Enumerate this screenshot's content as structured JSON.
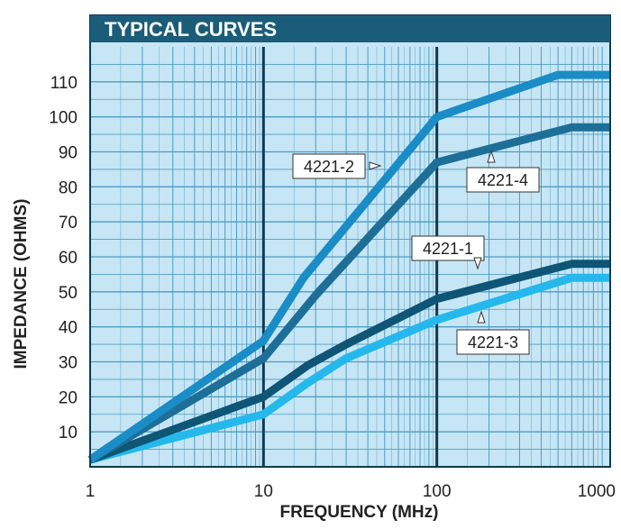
{
  "chart_data": {
    "type": "line",
    "title": "TYPICAL CURVES",
    "xlabel": "FREQUENCY (MHz)",
    "ylabel": "IMPEDANCE (OHMS)",
    "x_scale": "log",
    "xlim": [
      1,
      1000
    ],
    "ylim": [
      0,
      120
    ],
    "x_ticks": [
      1,
      10,
      100,
      1000
    ],
    "x_tick_labels": [
      "1",
      "10",
      "100",
      "1000"
    ],
    "y_ticks": [
      10,
      20,
      30,
      40,
      50,
      60,
      70,
      80,
      90,
      100,
      110
    ],
    "y_tick_labels": [
      "10",
      "20",
      "30",
      "40",
      "50",
      "60",
      "70",
      "80",
      "90",
      "100",
      "110"
    ],
    "grid": true,
    "series": [
      {
        "name": "4221-2",
        "color": "#1a8cc6",
        "x": [
          1,
          10,
          17,
          100,
          500,
          1000
        ],
        "y": [
          2,
          36,
          54,
          100,
          112,
          112
        ]
      },
      {
        "name": "4221-4",
        "color": "#1d6f98",
        "x": [
          1,
          10,
          20,
          100,
          600,
          1000
        ],
        "y": [
          2,
          31,
          49,
          87,
          97,
          97
        ]
      },
      {
        "name": "4221-1",
        "color": "#0e5576",
        "x": [
          1,
          10,
          18,
          30,
          100,
          600,
          1000
        ],
        "y": [
          2,
          20,
          29,
          35,
          48,
          58,
          58
        ]
      },
      {
        "name": "4221-3",
        "color": "#25b8ec",
        "x": [
          1,
          10,
          18,
          30,
          100,
          600,
          1000
        ],
        "y": [
          2,
          15,
          24,
          31,
          42,
          54,
          54
        ]
      }
    ],
    "colors": {
      "plot_background": "#c6e6f5",
      "grid_line": "#4f9cc4",
      "decade_line": "#0d3a50",
      "title_bar": "#1b5d79",
      "title_text": "#ffffff"
    }
  }
}
